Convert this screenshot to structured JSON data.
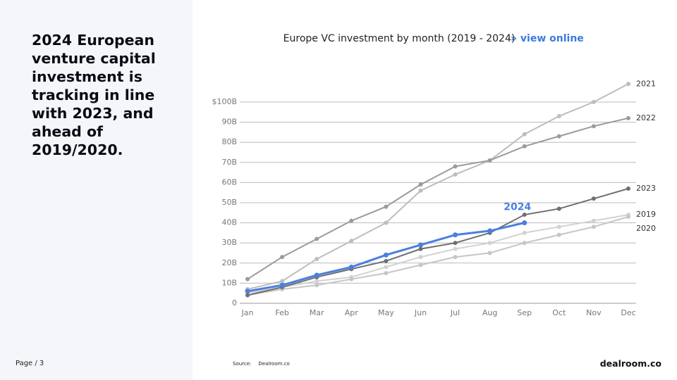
{
  "heading": "2024 European venture capital investment is tracking in line with 2023, and ahead of 2019/2020.",
  "page_label": "Page / 3",
  "source": {
    "label": "Source:",
    "name": "Dealroom.co"
  },
  "logo": "dealroom.co",
  "chart_data": {
    "type": "line",
    "title": "Europe VC investment by month (2019 - 2024)",
    "link": "» view online",
    "categories": [
      "Jan",
      "Feb",
      "Mar",
      "Apr",
      "May",
      "Jun",
      "Jul",
      "Aug",
      "Sep",
      "Oct",
      "Nov",
      "Dec"
    ],
    "ylim": [
      0,
      110
    ],
    "yticks": [
      0,
      {
        "value": 10,
        "label": "10B"
      },
      {
        "value": 20,
        "label": "20B"
      },
      {
        "value": 30,
        "label": "30B"
      },
      {
        "value": 40,
        "label": "40B"
      },
      {
        "value": 50,
        "label": "50B"
      },
      {
        "value": 60,
        "label": "60B"
      },
      {
        "value": 70,
        "label": "70B"
      },
      {
        "value": 80,
        "label": "80B"
      },
      {
        "value": 90,
        "label": "90B"
      },
      {
        "value": 100,
        "label": "$100B"
      }
    ],
    "grid": true,
    "series": [
      {
        "name": "2019",
        "color": "#d2d2d2",
        "values": [
          5,
          8,
          11,
          13,
          18,
          23,
          27,
          30,
          35,
          38,
          41,
          44
        ]
      },
      {
        "name": "2020",
        "color": "#c6c6c6",
        "values": [
          4,
          7,
          9,
          12,
          15,
          19,
          23,
          25,
          30,
          34,
          38,
          43
        ]
      },
      {
        "name": "2021",
        "color": "#bdbdbd",
        "values": [
          7,
          11,
          22,
          31,
          40,
          56,
          64,
          71,
          84,
          93,
          100,
          109
        ]
      },
      {
        "name": "2022",
        "color": "#9b9b9b",
        "values": [
          12,
          23,
          32,
          41,
          48,
          59,
          68,
          71,
          78,
          83,
          88,
          92
        ]
      },
      {
        "name": "2023",
        "color": "#6f6f6f",
        "values": [
          4,
          8,
          13,
          17,
          21,
          27,
          30,
          35,
          44,
          47,
          52,
          57
        ]
      },
      {
        "name": "2024",
        "color": "#4a7fe0",
        "values": [
          6,
          9,
          14,
          18,
          24,
          29,
          34,
          36,
          40,
          null,
          null,
          null
        ]
      }
    ]
  }
}
